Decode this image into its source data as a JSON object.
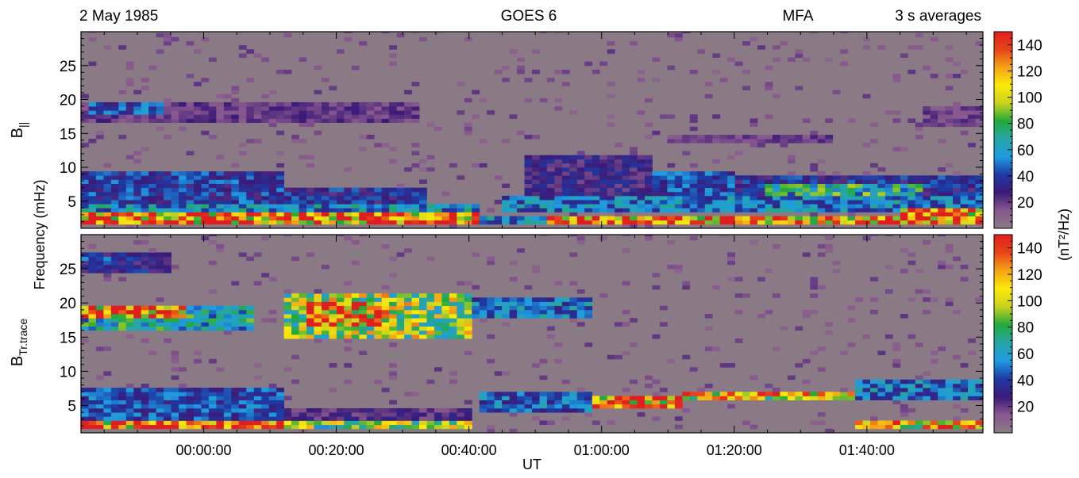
{
  "header": {
    "date": "2 May 1985",
    "satellite": "GOES 6",
    "coordinates": "MFA",
    "averaging": "3 s averages"
  },
  "colors": {
    "background": "#8a7a86",
    "scale": [
      "#8a7a86",
      "#88588e",
      "#3c1a78",
      "#1e3aa4",
      "#1f9be0",
      "#26a6a6",
      "#22aa3a",
      "#c8d21e",
      "#fcea0a",
      "#f5a416",
      "#e84418",
      "#e01e1e"
    ]
  },
  "chart_data": {
    "type": "heatmap",
    "xlabel": "UT",
    "ylabel": "Frequency (mHz)",
    "x_tick_labels": [
      "00:00:00",
      "00:20:00",
      "00:40:00",
      "01:00:00",
      "01:20:00",
      "01:40:00"
    ],
    "x_tick_minutes": [
      0,
      20,
      40,
      60,
      80,
      100
    ],
    "xlim_minutes": [
      -18.5,
      117.5
    ],
    "ylim": [
      1,
      30
    ],
    "y_ticks": [
      5,
      10,
      15,
      20,
      25
    ],
    "colorbar": {
      "label": "(nT²/Hz)",
      "range": [
        0,
        150
      ],
      "ticks": [
        20,
        40,
        60,
        80,
        100,
        120,
        140
      ]
    },
    "panels": [
      {
        "name": "B||",
        "label_main": "B",
        "label_sub": "||",
        "features": [
          {
            "t": [
              -18,
              42
            ],
            "f": [
              1.5,
              3.2
            ],
            "p": 145
          },
          {
            "t": [
              42,
              52
            ],
            "f": [
              1.5,
              2.5
            ],
            "p": 60
          },
          {
            "t": [
              52,
              105
            ],
            "f": [
              1.5,
              2.5
            ],
            "p": 145
          },
          {
            "t": [
              105,
              118
            ],
            "f": [
              1.5,
              3.8
            ],
            "p": 145
          },
          {
            "t": [
              -18,
              42
            ],
            "f": [
              3.2,
              4.5
            ],
            "p": 60
          },
          {
            "t": [
              45,
              118
            ],
            "f": [
              3.2,
              5.5
            ],
            "p": 55
          },
          {
            "t": [
              -18,
              12
            ],
            "f": [
              4.5,
              9.5
            ],
            "p": 42
          },
          {
            "t": [
              12,
              34
            ],
            "f": [
              4.5,
              7
            ],
            "p": 38
          },
          {
            "t": [
              48,
              68
            ],
            "f": [
              5.5,
              11.5
            ],
            "p": 30
          },
          {
            "t": [
              68,
              80
            ],
            "f": [
              5,
              9.5
            ],
            "p": 45
          },
          {
            "t": [
              80,
              118
            ],
            "f": [
              5.5,
              8.5
            ],
            "p": 38
          },
          {
            "t": [
              85,
              108
            ],
            "f": [
              6,
              7.5
            ],
            "p": 75
          },
          {
            "t": [
              -18,
              33
            ],
            "f": [
              16.5,
              19.5
            ],
            "p": 22
          },
          {
            "t": [
              -17,
              -6
            ],
            "f": [
              18,
              19.5
            ],
            "p": 45
          },
          {
            "t": [
              70,
              95
            ],
            "f": [
              13.8,
              15
            ],
            "p": 20
          },
          {
            "t": [
              108,
              118
            ],
            "f": [
              16,
              19
            ],
            "p": 20
          }
        ]
      },
      {
        "name": "BTr.trace",
        "label_main": "B",
        "label_sub": "Tr.trace",
        "features": [
          {
            "t": [
              -18,
              12
            ],
            "f": [
              1.5,
              3
            ],
            "p": 140
          },
          {
            "t": [
              12,
              40
            ],
            "f": [
              1.5,
              2.5
            ],
            "p": 95
          },
          {
            "t": [
              98,
              118
            ],
            "f": [
              1.5,
              3
            ],
            "p": 125
          },
          {
            "t": [
              -18,
              12
            ],
            "f": [
              3,
              7.5
            ],
            "p": 45
          },
          {
            "t": [
              12,
              40
            ],
            "f": [
              2.5,
              4.5
            ],
            "p": 25
          },
          {
            "t": [
              42,
              58
            ],
            "f": [
              4,
              7
            ],
            "p": 50
          },
          {
            "t": [
              58,
              72
            ],
            "f": [
              4.5,
              6.5
            ],
            "p": 145
          },
          {
            "t": [
              72,
              98
            ],
            "f": [
              5.5,
              7.2
            ],
            "p": 115
          },
          {
            "t": [
              98,
              118
            ],
            "f": [
              5.5,
              8.5
            ],
            "p": 55
          },
          {
            "t": [
              -18,
              8
            ],
            "f": [
              16,
              19.5
            ],
            "p": 70
          },
          {
            "t": [
              -18,
              -3
            ],
            "f": [
              17.5,
              19.5
            ],
            "p": 145
          },
          {
            "t": [
              12,
              40
            ],
            "f": [
              15,
              21.5
            ],
            "p": 100
          },
          {
            "t": [
              16,
              28
            ],
            "f": [
              16.5,
              20
            ],
            "p": 140
          },
          {
            "t": [
              40,
              58
            ],
            "f": [
              17.5,
              21
            ],
            "p": 55
          },
          {
            "t": [
              -18,
              -5
            ],
            "f": [
              24.5,
              27.5
            ],
            "p": 35
          },
          {
            "t": [
              -18,
              -10
            ],
            "f": [
              26,
              27
            ],
            "p": 55
          }
        ]
      }
    ]
  }
}
